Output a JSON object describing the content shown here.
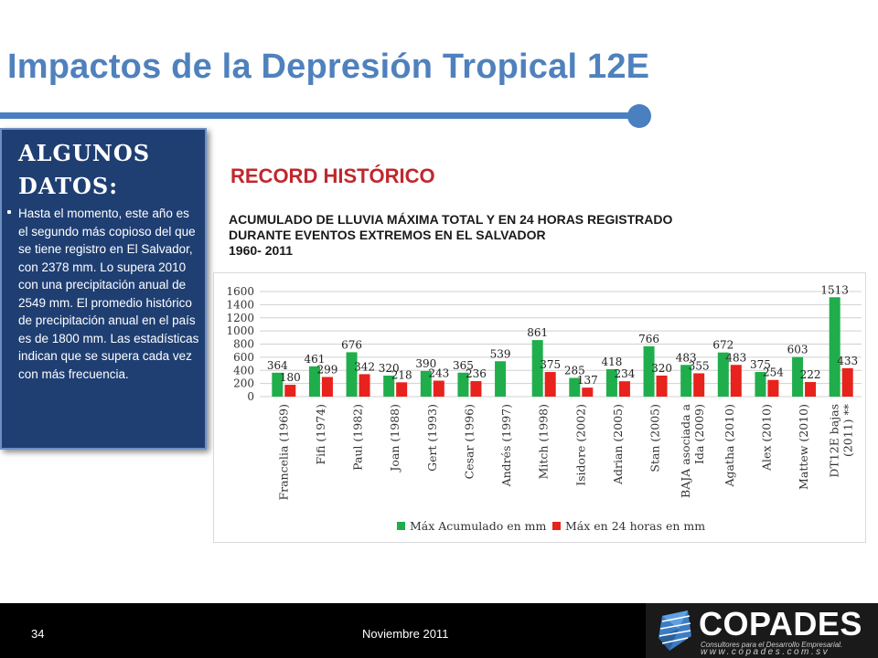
{
  "slide": {
    "title": "Impactos de la Depresión Tropical 12E",
    "colors": {
      "title": "#4f81bd",
      "accent_bar": "#4a7fc0",
      "side_panel": "#1f3f73",
      "record_title": "#c0272d"
    }
  },
  "side_panel": {
    "heading": "ALGUNOS DATOS:",
    "text": "Hasta el momento, este año es el segundo más copioso del que se tiene registro en El Salvador, con 2378 mm. Lo supera 2010 con una precipitación anual de 2549 mm. El promedio histórico de precipitación anual en el país es de 1800 mm. Las estadísticas indican que se supera cada vez con más frecuencia."
  },
  "record_title": "RECORD HISTÓRICO",
  "subtitle": {
    "line1": "ACUMULADO DE LLUVIA MÁXIMA TOTAL Y EN 24 HORAS REGISTRADO",
    "line2": "DURANTE EVENTOS EXTREMOS EN EL SALVADOR",
    "line3": "1960- 2011"
  },
  "chart_data": {
    "type": "bar",
    "categories": [
      [
        "Francelia (1969)"
      ],
      [
        "Fifi (1974)"
      ],
      [
        "Paul (1982)"
      ],
      [
        "Joan (1988)"
      ],
      [
        "Gert (1993)"
      ],
      [
        "Cesar (1996)"
      ],
      [
        "Andrés (1997)"
      ],
      [
        "Mitch (1998)"
      ],
      [
        "Isidore (2002)"
      ],
      [
        "Adrian (2005)"
      ],
      [
        "Stan (2005)"
      ],
      [
        "BAJA asociada a",
        "Ida (2009)"
      ],
      [
        "Agatha (2010)"
      ],
      [
        "Alex (2010)"
      ],
      [
        "Mattew (2010)"
      ],
      [
        "DT12E bajas",
        "(2011) **"
      ]
    ],
    "series": [
      {
        "name": "Máx Acumulado en mm",
        "color": "#1fae4b",
        "values": [
          364,
          461,
          676,
          320,
          390,
          365,
          539,
          861,
          285,
          418,
          766,
          483,
          672,
          375,
          603,
          1513
        ]
      },
      {
        "name": "Máx en 24 horas en mm",
        "color": "#e8221c",
        "values": [
          180,
          299,
          342,
          218,
          243,
          236,
          null,
          375,
          137,
          234,
          320,
          355,
          483,
          254,
          222,
          433
        ]
      }
    ],
    "ylim": [
      0,
      1600
    ],
    "yticks": [
      0,
      200,
      400,
      600,
      800,
      1000,
      1200,
      1400,
      1600
    ],
    "grid": true,
    "legend_position": "bottom"
  },
  "footer": {
    "page_number": "34",
    "date": "Noviembre 2011",
    "logo_name": "COPADES",
    "logo_tagline": "Consultores para el Desarrollo Empresarial.",
    "logo_url": "www.copades.com.sv"
  }
}
